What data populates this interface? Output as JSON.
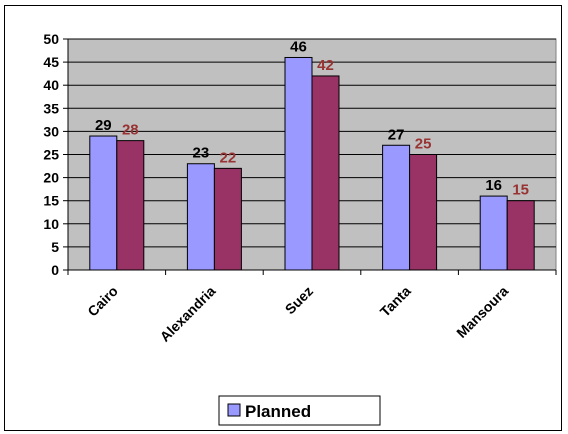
{
  "chart_data": {
    "type": "bar",
    "categories": [
      "Cairo",
      "Alexandria",
      "Suez",
      "Tanta",
      "Mansoura"
    ],
    "series": [
      {
        "name": "Planned",
        "values": [
          29,
          23,
          46,
          27,
          16
        ],
        "color": "#9999FF",
        "label_color": "#000000"
      },
      {
        "values": [
          28,
          22,
          42,
          25,
          15
        ],
        "color": "#993366",
        "label_color": "#993333"
      }
    ],
    "ylim": [
      0,
      50
    ],
    "yticks": [
      0,
      5,
      10,
      15,
      20,
      25,
      30,
      35,
      40,
      45,
      50
    ],
    "grid": true,
    "plot_background": "#C0C0C0",
    "legend_placement": "bottom"
  }
}
